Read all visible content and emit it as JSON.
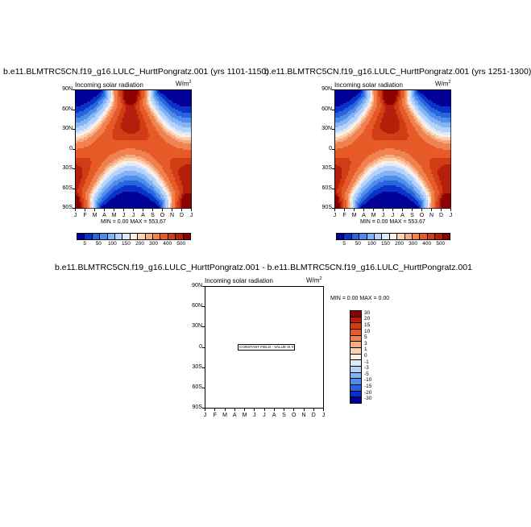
{
  "chart_data": [
    {
      "type": "heatmap",
      "title": "b.e11.BLMTRC5CN.f19_g16.LULC_HurttPongratz.001 (yrs 1101-1150)",
      "subtitle": "Incoming solar radiation",
      "units": "W/m",
      "units_sup": "2",
      "x_ticks": [
        "J",
        "F",
        "M",
        "A",
        "M",
        "J",
        "J",
        "A",
        "S",
        "O",
        "N",
        "D",
        "J"
      ],
      "y_ticks": [
        "90N",
        "60N",
        "30N",
        "0",
        "30S",
        "60S",
        "90S"
      ],
      "minmax_text": "MIN =   0.00 MAX = 553.67",
      "min": 0.0,
      "max": 553.67,
      "colorbar": {
        "levels": [
          "5",
          "50",
          "100",
          "150",
          "200",
          "300",
          "400",
          "500"
        ],
        "colors": [
          "#000096",
          "#0a32c8",
          "#2864dc",
          "#508ceb",
          "#82b4f5",
          "#b4d2fa",
          "#dceafa",
          "#fff0e6",
          "#fad2b4",
          "#f5aa82",
          "#f08250",
          "#e65a28",
          "#d23c14",
          "#b41e0a",
          "#8c0000"
        ]
      }
    },
    {
      "type": "heatmap",
      "title": "b.e11.BLMTRC5CN.f19_g16.LULC_HurttPongratz.001 (yrs 1251-1300)",
      "subtitle": "Incoming solar radiation",
      "units": "W/m",
      "units_sup": "2",
      "x_ticks": [
        "J",
        "F",
        "M",
        "A",
        "M",
        "J",
        "J",
        "A",
        "S",
        "O",
        "N",
        "D",
        "J"
      ],
      "y_ticks": [
        "90N",
        "60N",
        "30N",
        "0",
        "30S",
        "60S",
        "90S"
      ],
      "minmax_text": "MIN =   0.00 MAX = 553.67",
      "min": 0.0,
      "max": 553.67,
      "colorbar": {
        "levels": [
          "5",
          "50",
          "100",
          "150",
          "200",
          "300",
          "400",
          "500"
        ]
      }
    },
    {
      "type": "heatmap",
      "title": "b.e11.BLMTRC5CN.f19_g16.LULC_HurttPongratz.001 - b.e11.BLMTRC5CN.f19_g16.LULC_HurttPongratz.001",
      "subtitle": "Incoming solar radiation",
      "units": "W/m",
      "units_sup": "2",
      "x_ticks": [
        "J",
        "F",
        "M",
        "A",
        "M",
        "J",
        "J",
        "A",
        "S",
        "O",
        "N",
        "D",
        "J"
      ],
      "y_ticks": [
        "90N",
        "60N",
        "30N",
        "0",
        "30S",
        "60S",
        "90S"
      ],
      "minmax_text": "MIN =   0.00 MAX =   0.00",
      "min": 0.0,
      "max": 0.0,
      "constant_label": "CONSTANT FIELD - VALUE IS 0",
      "colorbar": {
        "levels": [
          "30",
          "20",
          "15",
          "10",
          "5",
          "3",
          "1",
          "0",
          "-1",
          "-3",
          "-5",
          "-10",
          "-15",
          "-20",
          "-30"
        ],
        "colors": [
          "#8c0000",
          "#b41e0a",
          "#d23c14",
          "#e65a28",
          "#f08250",
          "#f5aa82",
          "#fad2b4",
          "#fff0e6",
          "#dceafa",
          "#b4d2fa",
          "#82b4f5",
          "#508ceb",
          "#2864dc",
          "#0a32c8",
          "#000096"
        ]
      }
    }
  ]
}
